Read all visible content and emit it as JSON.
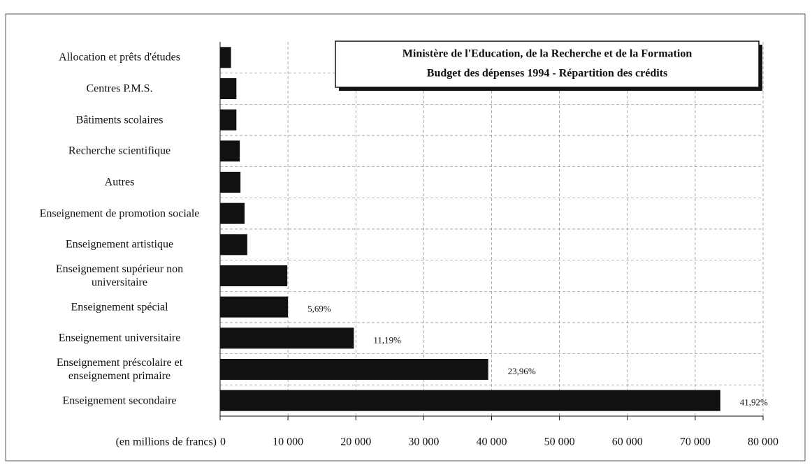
{
  "chart_data": {
    "type": "barh",
    "title": "Ministère de l'Education, de la Recherche et de la Formation",
    "subtitle": "Budget des dépenses 1994 - Répartition des crédits",
    "x_label": "(en millions de francs)",
    "categories": [
      "Allocation  et prêts d'études",
      "Centres P.M.S.",
      "Bâtiments scolaires",
      "Recherche scientifique",
      "Autres",
      "Enseignement de promotion sociale",
      "Enseignement artistique",
      "Enseignement supérieur non universitaire",
      "Enseignement spécial",
      "Enseignement universitaire",
      "Enseignement préscolaire et enseignement primaire",
      "Enseignement secondaire"
    ],
    "values": [
      1600,
      2400,
      2400,
      2900,
      3000,
      3600,
      4000,
      9900,
      10000,
      19700,
      39500,
      73700
    ],
    "shares": [
      null,
      null,
      null,
      null,
      null,
      null,
      null,
      null,
      5.69,
      11.19,
      23.96,
      41.92
    ],
    "share_labels": [
      null,
      null,
      null,
      null,
      null,
      null,
      null,
      null,
      "5,69%",
      "11,19%",
      "23,96%",
      "41,92%"
    ],
    "color": "#111111",
    "xlim": [
      0,
      80000
    ],
    "xticks": [
      0,
      {
        "value": 10000,
        "label": "10 000"
      },
      {
        "value": 20000,
        "label": "20 000"
      },
      {
        "value": 30000,
        "label": "30 000"
      },
      {
        "value": 40000,
        "label": "40 000"
      },
      {
        "value": 50000,
        "label": "50 000"
      },
      {
        "value": 60000,
        "label": "60 000"
      },
      {
        "value": 70000,
        "label": "70 000"
      },
      {
        "value": 80000,
        "label": "80 000"
      }
    ],
    "grid": true
  }
}
